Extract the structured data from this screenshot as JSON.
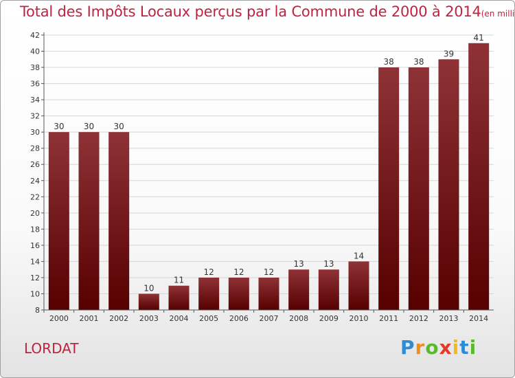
{
  "title": "Total des Impôts Locaux perçus par la Commune de 2000 à 2014",
  "title_unit": "(en milliers d'€)",
  "commune": "LORDAT",
  "logo": {
    "text": "Proxiti",
    "letters": [
      "P",
      "r",
      "o",
      "x",
      "i",
      "t",
      "i"
    ],
    "colors": [
      "#2e8bd6",
      "#f28c1e",
      "#5cb82e",
      "#e43a2a",
      "#f2b81e",
      "#2e8bd6",
      "#5cb82e"
    ]
  },
  "colors": {
    "title": "#c0223f",
    "bar_top": "#8e3236",
    "bar_bottom": "#560000",
    "grid": "#d6d6d6",
    "axis": "#555555"
  },
  "chart_data": {
    "type": "bar",
    "title": "Total des Impôts Locaux perçus par la Commune de 2000 à 2014",
    "ylabel": "(en milliers d'€)",
    "xlabel": "",
    "categories": [
      "2000",
      "2001",
      "2002",
      "2003",
      "2004",
      "2005",
      "2006",
      "2007",
      "2008",
      "2009",
      "2010",
      "2011",
      "2012",
      "2013",
      "2014"
    ],
    "values": [
      30,
      30,
      30,
      10,
      11,
      12,
      12,
      12,
      13,
      13,
      14,
      38,
      38,
      39,
      41
    ],
    "ylim": [
      8,
      42
    ],
    "yticks": [
      8,
      10,
      12,
      14,
      16,
      18,
      20,
      22,
      24,
      26,
      28,
      30,
      32,
      34,
      36,
      38,
      40,
      42
    ],
    "grid": true,
    "data_labels": true
  }
}
